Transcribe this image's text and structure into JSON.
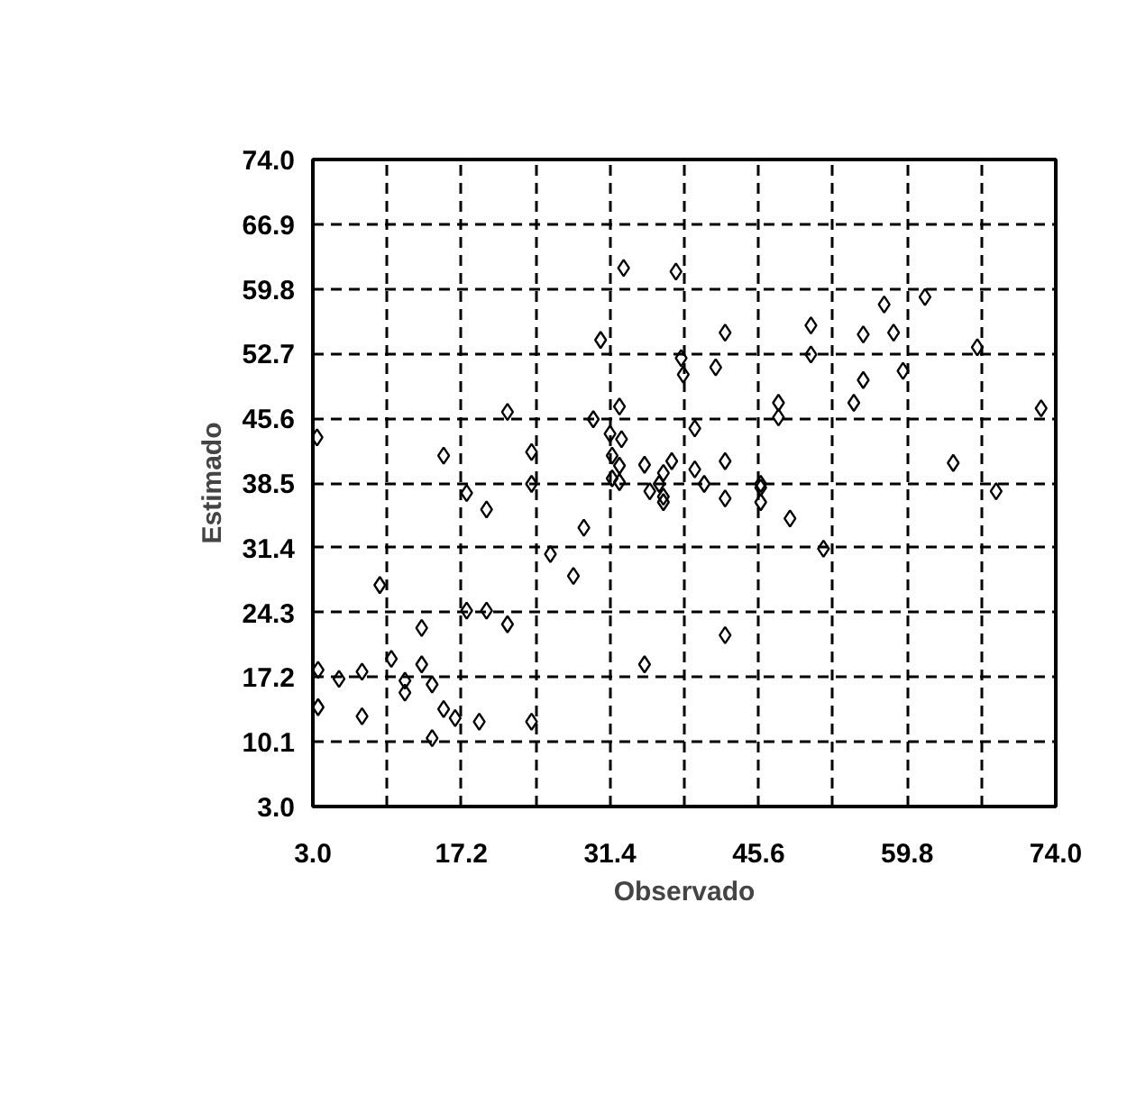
{
  "chart_data": {
    "type": "scatter",
    "xlabel": "Observado",
    "ylabel": "Estimado",
    "xlim": [
      3.0,
      74.0
    ],
    "ylim": [
      3.0,
      74.0
    ],
    "xticks": [
      {
        "value": 3.0,
        "label": "3.0"
      },
      {
        "value": 10.1,
        "label": null
      },
      {
        "value": 17.2,
        "label": "17.2"
      },
      {
        "value": 24.3,
        "label": null
      },
      {
        "value": 31.4,
        "label": "31.4"
      },
      {
        "value": 38.5,
        "label": null
      },
      {
        "value": 45.6,
        "label": "45.6"
      },
      {
        "value": 52.7,
        "label": null
      },
      {
        "value": 59.8,
        "label": "59.8"
      },
      {
        "value": 66.9,
        "label": null
      },
      {
        "value": 74.0,
        "label": "74.0"
      }
    ],
    "yticks": [
      {
        "value": 3.0,
        "label": "3.0"
      },
      {
        "value": 10.1,
        "label": "10.1"
      },
      {
        "value": 17.2,
        "label": "17.2"
      },
      {
        "value": 24.3,
        "label": "24.3"
      },
      {
        "value": 31.4,
        "label": "31.4"
      },
      {
        "value": 38.5,
        "label": "38.5"
      },
      {
        "value": 45.6,
        "label": "45.6"
      },
      {
        "value": 52.7,
        "label": "52.7"
      },
      {
        "value": 59.8,
        "label": "59.8"
      },
      {
        "value": 66.9,
        "label": "66.9"
      },
      {
        "value": 74.0,
        "label": "74.0"
      }
    ],
    "grid": true,
    "marker": "diamond",
    "series": [
      {
        "color": "#000000",
        "x": [
          32.7,
          37.7,
          30.5,
          38.2,
          38.4,
          21.6,
          29.8,
          32.3,
          31.4,
          32.5,
          15.5,
          23.9,
          31.6,
          32.3,
          31.6,
          34.7,
          36.5,
          37.3,
          39.5,
          17.7,
          23.9,
          3.4,
          42.4,
          50.6,
          50.6,
          55.6,
          58.5,
          57.6,
          61.5,
          66.5,
          59.4,
          55.6,
          54.7,
          47.5,
          47.5,
          41.5,
          39.5,
          72.6,
          64.2,
          42.4,
          45.8,
          68.3,
          19.6,
          32.3,
          35.2,
          36.1,
          36.5,
          28.9,
          25.7,
          27.9,
          9.4,
          17.7,
          19.6,
          21.6,
          13.4,
          34.7,
          10.5,
          13.4,
          7.7,
          5.5,
          3.5,
          3.5,
          11.8,
          11.8,
          14.4,
          7.7,
          15.5,
          16.6,
          18.9,
          14.4,
          23.9,
          36.5,
          40.4,
          42.4,
          45.8,
          45.8,
          48.6,
          51.8,
          42.4
        ],
        "values": [
          62.1,
          61.7,
          54.2,
          52.2,
          50.4,
          46.3,
          45.5,
          46.9,
          43.9,
          43.3,
          41.5,
          41.9,
          41.5,
          40.4,
          39.0,
          40.5,
          39.6,
          40.9,
          40.0,
          37.4,
          38.4,
          43.5,
          55.0,
          55.8,
          52.6,
          54.8,
          55.0,
          58.1,
          58.9,
          53.4,
          50.8,
          49.8,
          47.3,
          47.3,
          45.7,
          51.2,
          44.5,
          46.7,
          40.7,
          40.9,
          38.4,
          37.6,
          35.6,
          38.6,
          37.6,
          38.4,
          36.4,
          33.6,
          30.7,
          28.3,
          27.3,
          24.5,
          24.5,
          23.0,
          22.6,
          18.6,
          19.2,
          18.6,
          17.8,
          17.0,
          18.0,
          13.9,
          16.8,
          15.5,
          16.4,
          12.9,
          13.7,
          12.7,
          12.3,
          10.5,
          12.3,
          37.0,
          38.4,
          36.8,
          38.0,
          36.4,
          34.6,
          31.3,
          21.8
        ]
      }
    ]
  }
}
